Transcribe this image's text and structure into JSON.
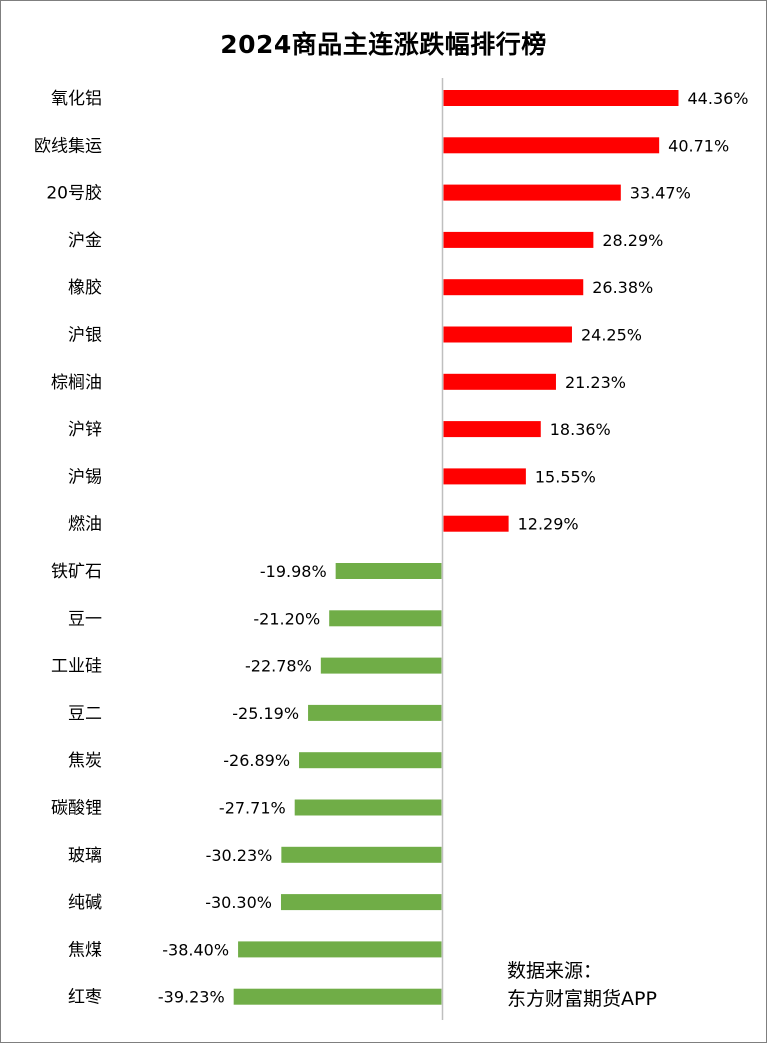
{
  "chart_data": {
    "type": "bar",
    "orientation": "horizontal",
    "title": "2024商品主连涨跌幅排行榜",
    "categories": [
      "氧化铝",
      "欧线集运",
      "20号胶",
      "沪金",
      "橡胶",
      "沪银",
      "棕榈油",
      "沪锌",
      "沪锡",
      "燃油",
      "铁矿石",
      "豆一",
      "工业硅",
      "豆二",
      "焦炭",
      "碳酸锂",
      "玻璃",
      "纯碱",
      "焦煤",
      "红枣"
    ],
    "values": [
      44.36,
      40.71,
      33.47,
      28.29,
      26.38,
      24.25,
      21.23,
      18.36,
      15.55,
      12.29,
      -19.98,
      -21.2,
      -22.78,
      -25.19,
      -26.89,
      -27.71,
      -30.23,
      -30.3,
      -38.4,
      -39.23
    ],
    "value_labels": [
      "44.36%",
      "40.71%",
      "33.47%",
      "28.29%",
      "26.38%",
      "24.25%",
      "21.23%",
      "18.36%",
      "15.55%",
      "12.29%",
      "-19.98%",
      "-21.20%",
      "-22.78%",
      "-25.19%",
      "-26.89%",
      "-27.71%",
      "-30.23%",
      "-30.30%",
      "-38.40%",
      "-39.23%"
    ],
    "unit": "%",
    "positive_color": "#ff0000",
    "negative_color": "#70ad47",
    "axis_color": "#bfbfbf",
    "grid": false,
    "legend": "none"
  },
  "source": {
    "line1": "数据来源：",
    "line2": "东方财富期货APP"
  }
}
